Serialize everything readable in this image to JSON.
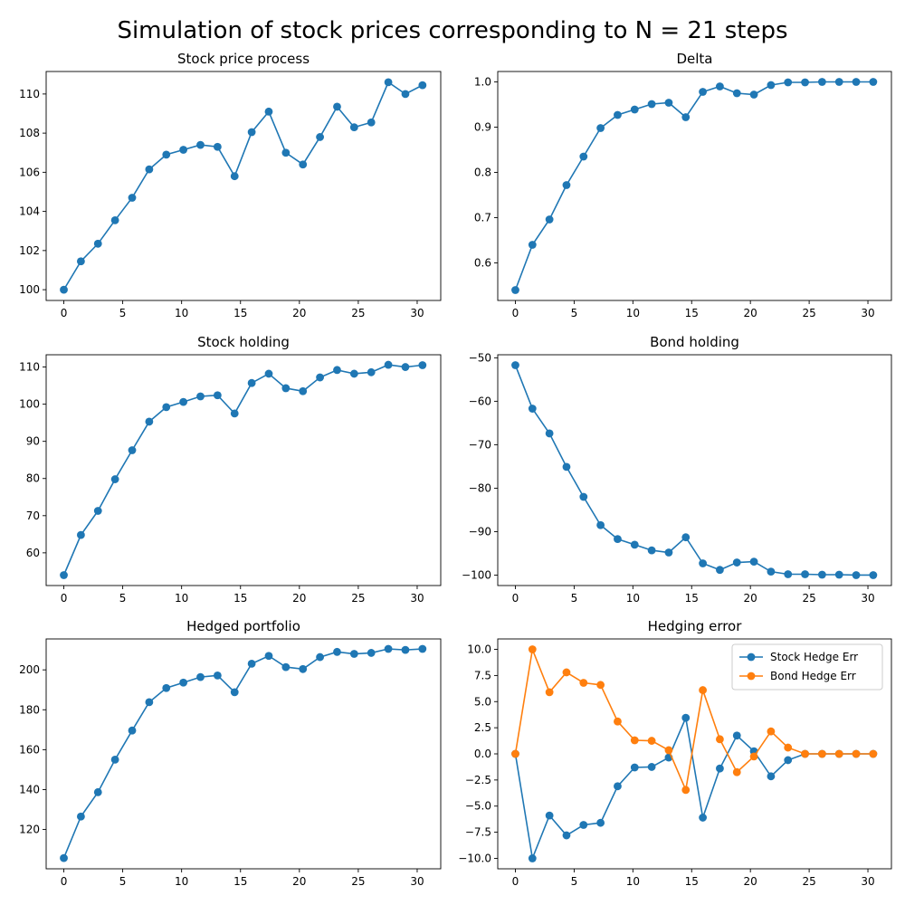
{
  "figure_title": "Simulation of stock prices corresponding to N = 21 steps",
  "chart_data": [
    {
      "type": "line",
      "title": "Stock price process",
      "xlabel": "",
      "ylabel": "",
      "xlim": [
        -1.5,
        32
      ],
      "ylim": [
        99.45,
        111.15
      ],
      "xticks": [
        0,
        5,
        10,
        15,
        20,
        25,
        30
      ],
      "yticks": [
        100,
        102,
        104,
        106,
        108,
        110
      ],
      "x": [
        0,
        1.45,
        2.9,
        4.35,
        5.8,
        7.25,
        8.7,
        10.15,
        11.6,
        13.05,
        14.5,
        15.95,
        17.4,
        18.85,
        20.3,
        21.75,
        23.2,
        24.65,
        26.1,
        27.55,
        29.0,
        30.45
      ],
      "series": [
        {
          "name": "",
          "color": "#1f77b4",
          "values": [
            100.0,
            101.45,
            102.35,
            103.55,
            104.7,
            106.15,
            106.9,
            107.15,
            107.4,
            107.3,
            105.8,
            108.05,
            109.1,
            107.0,
            106.4,
            107.8,
            109.35,
            108.3,
            108.55,
            110.6,
            110.0,
            110.45
          ]
        }
      ],
      "legend": null
    },
    {
      "type": "line",
      "title": "Delta",
      "xlabel": "",
      "ylabel": "",
      "xlim": [
        -1.5,
        32
      ],
      "ylim": [
        0.517,
        1.023
      ],
      "xticks": [
        0,
        5,
        10,
        15,
        20,
        25,
        30
      ],
      "yticks": [
        "0.6",
        "0.7",
        "0.8",
        "0.9",
        "1.0"
      ],
      "x": [
        0,
        1.45,
        2.9,
        4.35,
        5.8,
        7.25,
        8.7,
        10.15,
        11.6,
        13.05,
        14.5,
        15.95,
        17.4,
        18.85,
        20.3,
        21.75,
        23.2,
        24.65,
        26.1,
        27.55,
        29.0,
        30.45
      ],
      "series": [
        {
          "name": "",
          "color": "#1f77b4",
          "values": [
            0.54,
            0.64,
            0.696,
            0.772,
            0.835,
            0.898,
            0.927,
            0.939,
            0.951,
            0.954,
            0.922,
            0.978,
            0.99,
            0.975,
            0.972,
            0.993,
            0.999,
            0.999,
            1.0,
            1.0,
            1.0,
            1.0
          ]
        }
      ],
      "legend": null
    },
    {
      "type": "line",
      "title": "Stock holding",
      "xlabel": "",
      "ylabel": "",
      "xlim": [
        -1.5,
        32
      ],
      "ylim": [
        51.2,
        113.3
      ],
      "xticks": [
        0,
        5,
        10,
        15,
        20,
        25,
        30
      ],
      "yticks": [
        60,
        70,
        80,
        90,
        100,
        110
      ],
      "x": [
        0,
        1.45,
        2.9,
        4.35,
        5.8,
        7.25,
        8.7,
        10.15,
        11.6,
        13.05,
        14.5,
        15.95,
        17.4,
        18.85,
        20.3,
        21.75,
        23.2,
        24.65,
        26.1,
        27.55,
        29.0,
        30.45
      ],
      "series": [
        {
          "name": "",
          "color": "#1f77b4",
          "values": [
            54.0,
            64.8,
            71.3,
            79.8,
            87.6,
            95.3,
            99.2,
            100.6,
            102.1,
            102.4,
            97.5,
            105.7,
            108.2,
            104.3,
            103.5,
            107.2,
            109.2,
            108.2,
            108.6,
            110.6,
            110.0,
            110.5
          ]
        }
      ],
      "legend": null
    },
    {
      "type": "line",
      "title": "Bond holding",
      "xlabel": "",
      "ylabel": "",
      "xlim": [
        -1.5,
        32
      ],
      "ylim": [
        -102.4,
        -49.3
      ],
      "xticks": [
        0,
        5,
        10,
        15,
        20,
        25,
        30
      ],
      "yticks": [
        -100,
        -90,
        -80,
        -70,
        -60,
        -50
      ],
      "x": [
        0,
        1.45,
        2.9,
        4.35,
        5.8,
        7.25,
        8.7,
        10.15,
        11.6,
        13.05,
        14.5,
        15.95,
        17.4,
        18.85,
        20.3,
        21.75,
        23.2,
        24.65,
        26.1,
        27.55,
        29.0,
        30.45
      ],
      "series": [
        {
          "name": "",
          "color": "#1f77b4",
          "values": [
            -51.7,
            -61.7,
            -67.4,
            -75.1,
            -82.0,
            -88.5,
            -91.7,
            -93.0,
            -94.3,
            -94.8,
            -91.3,
            -97.3,
            -98.8,
            -97.1,
            -96.9,
            -99.2,
            -99.8,
            -99.8,
            -99.9,
            -99.9,
            -100.0,
            -100.0
          ]
        }
      ],
      "legend": null
    },
    {
      "type": "line",
      "title": "Hedged portfolio",
      "xlabel": "",
      "ylabel": "",
      "xlim": [
        -1.5,
        32
      ],
      "ylim": [
        100.3,
        215.5
      ],
      "xticks": [
        0,
        5,
        10,
        15,
        20,
        25,
        30
      ],
      "yticks": [
        120,
        140,
        160,
        180,
        200
      ],
      "x": [
        0,
        1.45,
        2.9,
        4.35,
        5.8,
        7.25,
        8.7,
        10.15,
        11.6,
        13.05,
        14.5,
        15.95,
        17.4,
        18.85,
        20.3,
        21.75,
        23.2,
        24.65,
        26.1,
        27.55,
        29.0,
        30.45
      ],
      "series": [
        {
          "name": "",
          "color": "#1f77b4",
          "values": [
            105.7,
            126.5,
            138.7,
            155.0,
            169.6,
            183.8,
            190.9,
            193.6,
            196.4,
            197.2,
            188.8,
            203.1,
            207.0,
            201.4,
            200.4,
            206.4,
            209.0,
            208.0,
            208.5,
            210.5,
            210.0,
            210.5
          ]
        }
      ],
      "legend": null
    },
    {
      "type": "line",
      "title": "Hedging error",
      "xlabel": "",
      "ylabel": "",
      "xlim": [
        -1.5,
        32
      ],
      "ylim": [
        -11.0,
        11.0
      ],
      "xticks": [
        0,
        5,
        10,
        15,
        20,
        25,
        30
      ],
      "yticks": [
        "-10.0",
        "-7.5",
        "-5.0",
        "-2.5",
        "0.0",
        "2.5",
        "5.0",
        "7.5",
        "10.0"
      ],
      "x": [
        0,
        1.45,
        2.9,
        4.35,
        5.8,
        7.25,
        8.7,
        10.15,
        11.6,
        13.05,
        14.5,
        15.95,
        17.4,
        18.85,
        20.3,
        21.75,
        23.2,
        24.65,
        26.1,
        27.55,
        29.0,
        30.45
      ],
      "series": [
        {
          "name": "Stock Hedge Err",
          "color": "#1f77b4",
          "values": [
            0.0,
            -10.0,
            -5.9,
            -7.8,
            -6.8,
            -6.6,
            -3.1,
            -1.3,
            -1.25,
            -0.35,
            3.45,
            -6.1,
            -1.4,
            1.75,
            0.25,
            -2.15,
            -0.6,
            0.0,
            0.0,
            0.0,
            0.0,
            0.0
          ]
        },
        {
          "name": "Bond Hedge Err",
          "color": "#ff7f0e",
          "values": [
            0.0,
            10.0,
            5.9,
            7.8,
            6.8,
            6.6,
            3.1,
            1.3,
            1.25,
            0.35,
            -3.45,
            6.1,
            1.4,
            -1.75,
            -0.25,
            2.15,
            0.6,
            0.0,
            0.0,
            0.0,
            0.0,
            0.0
          ]
        }
      ],
      "legend": "top-right"
    }
  ]
}
